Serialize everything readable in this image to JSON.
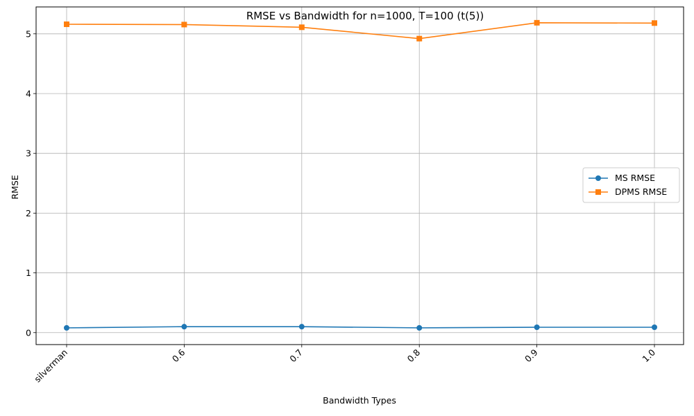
{
  "chart_data": {
    "type": "line",
    "title": "RMSE vs Bandwidth for n=1000, T=100 (t(5))",
    "xlabel": "Bandwidth Types",
    "ylabel": "RMSE",
    "categories": [
      "silverman",
      "0.6",
      "0.7",
      "0.8",
      "0.9",
      "1.0"
    ],
    "yticks": [
      "0",
      "1",
      "2",
      "3",
      "4",
      "5"
    ],
    "ylim": [
      -0.2,
      5.45
    ],
    "grid": true,
    "legend_position": "center-right",
    "series": [
      {
        "name": "MS RMSE",
        "color": "#1f77b4",
        "marker": "circle",
        "values": [
          0.08,
          0.1,
          0.1,
          0.08,
          0.09,
          0.09
        ]
      },
      {
        "name": "DPMS RMSE",
        "color": "#ff7f0e",
        "marker": "square",
        "values": [
          5.16,
          5.155,
          5.11,
          4.92,
          5.185,
          5.18
        ]
      }
    ]
  }
}
